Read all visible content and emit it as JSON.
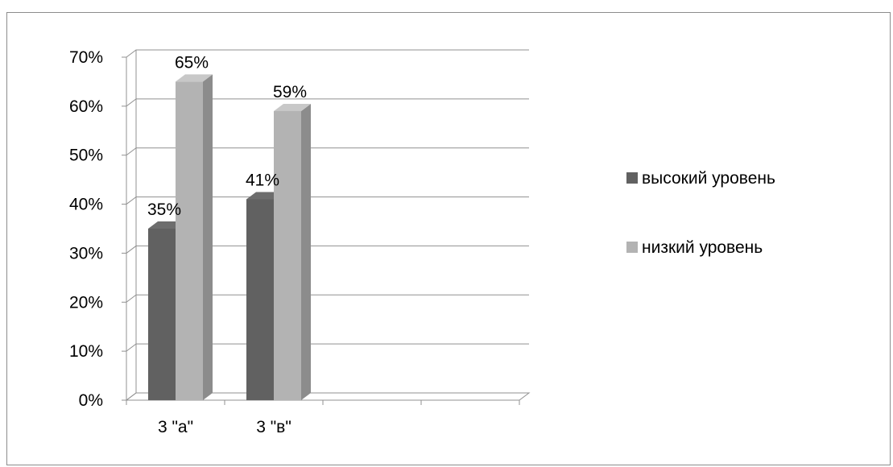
{
  "chart_data": {
    "type": "bar",
    "style": "3d-clustered-column",
    "title": "",
    "xlabel": "",
    "ylabel": "",
    "categories": [
      "3 \"а\"",
      "3 \"в\"",
      "",
      ""
    ],
    "series": [
      {
        "name": "высокий уровень",
        "values": [
          35,
          41,
          null,
          null
        ],
        "labels": [
          "35%",
          "41%",
          "",
          ""
        ],
        "color": "#616161"
      },
      {
        "name": "низкий уровень",
        "values": [
          65,
          59,
          null,
          null
        ],
        "labels": [
          "65%",
          "59%",
          "",
          ""
        ],
        "color": "#b3b3b3"
      }
    ],
    "ylim": [
      0,
      70
    ],
    "yticks": [
      0,
      10,
      20,
      30,
      40,
      50,
      60,
      70
    ],
    "ytick_labels": [
      "0%",
      "10%",
      "20%",
      "30%",
      "40%",
      "50%",
      "60%",
      "70%"
    ],
    "grid": true,
    "legend_position": "right",
    "colors": {
      "gridline": "#909090",
      "frame": "#8c8c8c"
    }
  }
}
